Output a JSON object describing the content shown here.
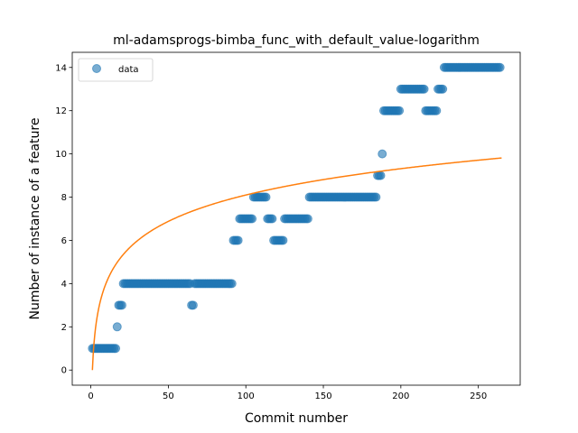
{
  "chart_data": {
    "type": "scatter",
    "title": "ml-adamsprogs-bimba_func_with_default_value-logarithm",
    "xlabel": "Commit number",
    "ylabel": "Number of instance of a feature",
    "xlim": [
      -12,
      277
    ],
    "ylim": [
      -0.7,
      14.7
    ],
    "xticks": [
      0,
      50,
      100,
      150,
      200,
      250
    ],
    "yticks": [
      0,
      2,
      4,
      6,
      8,
      10,
      12,
      14
    ],
    "legend": {
      "position": "top-left",
      "entries": [
        "data"
      ]
    },
    "series": [
      {
        "name": "data",
        "kind": "scatter",
        "color": "#1f77b4",
        "runs": [
          {
            "x_start": 1,
            "x_end": 16,
            "y": 1
          },
          {
            "x_start": 17,
            "x_end": 17,
            "y": 2
          },
          {
            "x_start": 18,
            "x_end": 20,
            "y": 3
          },
          {
            "x_start": 21,
            "x_end": 64,
            "y": 4
          },
          {
            "x_start": 65,
            "x_end": 66,
            "y": 3
          },
          {
            "x_start": 67,
            "x_end": 91,
            "y": 4
          },
          {
            "x_start": 92,
            "x_end": 95,
            "y": 6
          },
          {
            "x_start": 96,
            "x_end": 104,
            "y": 7
          },
          {
            "x_start": 105,
            "x_end": 113,
            "y": 8
          },
          {
            "x_start": 114,
            "x_end": 117,
            "y": 7
          },
          {
            "x_start": 118,
            "x_end": 124,
            "y": 6
          },
          {
            "x_start": 125,
            "x_end": 140,
            "y": 7
          },
          {
            "x_start": 141,
            "x_end": 184,
            "y": 8
          },
          {
            "x_start": 185,
            "x_end": 187,
            "y": 9
          },
          {
            "x_start": 188,
            "x_end": 188,
            "y": 10
          },
          {
            "x_start": 189,
            "x_end": 199,
            "y": 12
          },
          {
            "x_start": 200,
            "x_end": 215,
            "y": 13
          },
          {
            "x_start": 216,
            "x_end": 223,
            "y": 12
          },
          {
            "x_start": 224,
            "x_end": 227,
            "y": 13
          },
          {
            "x_start": 228,
            "x_end": 264,
            "y": 14
          }
        ]
      },
      {
        "kind": "line",
        "color": "#ff7f0e",
        "formula": "y = 1.7585 * ln(x)",
        "x_range": [
          1,
          265
        ]
      }
    ]
  }
}
